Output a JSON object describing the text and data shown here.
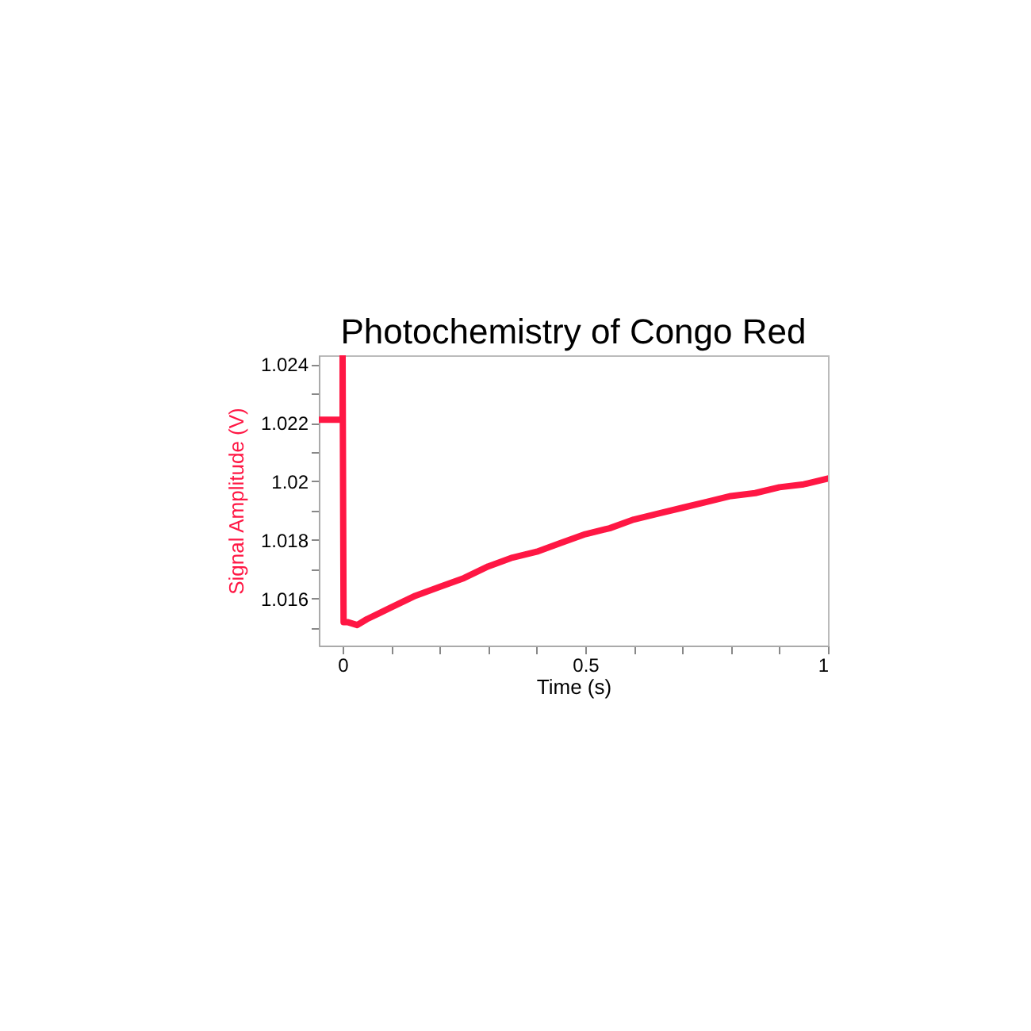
{
  "chart_data": {
    "type": "line",
    "title": "Photochemistry of Congo Red",
    "xlabel": "Time (s)",
    "ylabel": "Signal Amplitude (V)",
    "xlim": [
      -0.049,
      1
    ],
    "ylim": [
      1.0144,
      1.0243
    ],
    "xticks": [
      0,
      {
        "value": 0.1,
        "label": null
      },
      {
        "value": 0.2,
        "label": null
      },
      {
        "value": 0.3,
        "label": null
      },
      {
        "value": 0.4,
        "label": null
      },
      0.5,
      {
        "value": 0.6,
        "label": null
      },
      {
        "value": 0.7,
        "label": null
      },
      {
        "value": 0.8,
        "label": null
      },
      {
        "value": 0.9,
        "label": null
      },
      1
    ],
    "yticks": [
      {
        "value": 1.015,
        "label": null
      },
      1.016,
      {
        "value": 1.017,
        "label": null
      },
      1.018,
      {
        "value": 1.019,
        "label": null
      },
      1.02,
      {
        "value": 1.021,
        "label": null
      },
      1.022,
      {
        "value": 1.023,
        "label": null
      },
      1.024
    ],
    "grid": false,
    "marker": "none",
    "line_style": "solid",
    "series": [
      {
        "color": "#ff1744",
        "x": [
          -0.049,
          -0.03,
          -0.01,
          0,
          0,
          0.002,
          0.01,
          0.03,
          0.05,
          0.075,
          0.1,
          0.15,
          0.2,
          0.25,
          0.3,
          0.35,
          0.4,
          0.45,
          0.5,
          0.55,
          0.6,
          0.65,
          0.7,
          0.75,
          0.8,
          0.85,
          0.9,
          0.95,
          1
        ],
        "values": [
          1.0221,
          1.0221,
          1.0221,
          1.0221,
          1.0243,
          1.0152,
          1.0152,
          1.0151,
          1.0153,
          1.0155,
          1.0157,
          1.0161,
          1.0164,
          1.0167,
          1.0171,
          1.0174,
          1.0176,
          1.0179,
          1.0182,
          1.0184,
          1.0187,
          1.0189,
          1.0191,
          1.0193,
          1.0195,
          1.0196,
          1.0198,
          1.0199,
          1.0201
        ]
      }
    ]
  }
}
